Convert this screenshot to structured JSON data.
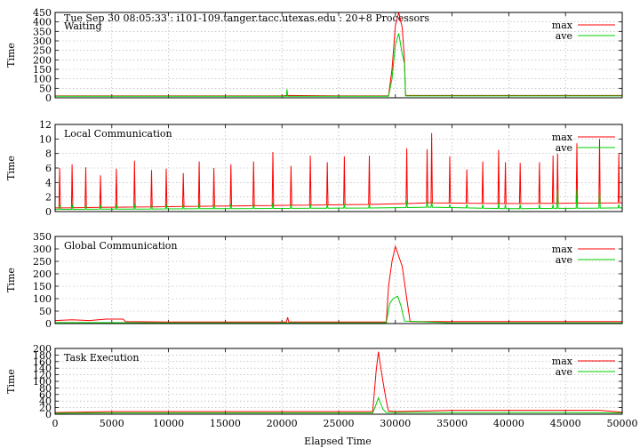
{
  "figure": {
    "header": "Tue Sep 30 08:05:33 : i101-109.tanger.tacc.utexas.edu : 20+8 Processors",
    "x_label": "Elapsed Time",
    "y_label": "Time",
    "x_ticks": [
      "0",
      "5000",
      "10000",
      "15000",
      "20000",
      "25000",
      "30000",
      "35000",
      "40000",
      "45000",
      "50000"
    ],
    "legend": [
      {
        "name": "max",
        "color": "#ff0000"
      },
      {
        "name": "ave",
        "color": "#00cc00"
      }
    ]
  },
  "chart_data": [
    {
      "type": "line",
      "title": "Waiting",
      "xlabel": "",
      "ylabel": "Time",
      "xlim": [
        0,
        50000
      ],
      "ylim": [
        0,
        450
      ],
      "yticks": [
        "0",
        "50",
        "100",
        "150",
        "200",
        "250",
        "300",
        "350",
        "400",
        "450"
      ],
      "grid": true,
      "legend_position": "top-right",
      "series": [
        {
          "name": "max",
          "color": "#ff0000",
          "points": [
            [
              0,
              10
            ],
            [
              5000,
              10
            ],
            [
              10000,
              10
            ],
            [
              15000,
              10
            ],
            [
              20000,
              10
            ],
            [
              20500,
              12
            ],
            [
              25000,
              10
            ],
            [
              29400,
              10
            ],
            [
              29700,
              150
            ],
            [
              30000,
              380
            ],
            [
              30300,
              450
            ],
            [
              30600,
              370
            ],
            [
              30800,
              200
            ],
            [
              30900,
              12
            ],
            [
              35000,
              12
            ],
            [
              40000,
              12
            ],
            [
              45000,
              12
            ],
            [
              50000,
              12
            ]
          ]
        },
        {
          "name": "ave",
          "color": "#00cc00",
          "points": [
            [
              0,
              8
            ],
            [
              5000,
              8
            ],
            [
              10000,
              8
            ],
            [
              15000,
              8
            ],
            [
              20400,
              8
            ],
            [
              20450,
              45
            ],
            [
              20500,
              8
            ],
            [
              25000,
              8
            ],
            [
              29400,
              8
            ],
            [
              29700,
              100
            ],
            [
              30000,
              280
            ],
            [
              30300,
              340
            ],
            [
              30600,
              230
            ],
            [
              30800,
              180
            ],
            [
              30900,
              10
            ],
            [
              35000,
              10
            ],
            [
              40000,
              10
            ],
            [
              45000,
              10
            ],
            [
              50000,
              10
            ]
          ]
        }
      ]
    },
    {
      "type": "line",
      "title": "Local Communication",
      "xlabel": "",
      "ylabel": "Time",
      "xlim": [
        0,
        50000
      ],
      "ylim": [
        0,
        12
      ],
      "yticks": [
        "0",
        "2",
        "4",
        "6",
        "8",
        "10",
        "12"
      ],
      "grid": true,
      "legend_position": "top-right",
      "baseline": {
        "max": [
          [
            0,
            0.5
          ],
          [
            17000,
            0.8
          ],
          [
            29000,
            1.0
          ],
          [
            33000,
            1.2
          ],
          [
            40000,
            1.1
          ],
          [
            50000,
            1.2
          ]
        ],
        "ave": [
          [
            0,
            0.3
          ],
          [
            29000,
            0.5
          ],
          [
            33000,
            0.6
          ],
          [
            40000,
            0.4
          ],
          [
            50000,
            0.5
          ]
        ]
      },
      "spikes": [
        {
          "x": 400,
          "max": 6.0,
          "ave": 1.0
        },
        {
          "x": 1500,
          "max": 6.5,
          "ave": 1.0
        },
        {
          "x": 2700,
          "max": 6.1,
          "ave": 1.0
        },
        {
          "x": 4000,
          "max": 5.0,
          "ave": 1.0
        },
        {
          "x": 5400,
          "max": 5.9,
          "ave": 1.0
        },
        {
          "x": 7000,
          "max": 7.0,
          "ave": 1.0
        },
        {
          "x": 8500,
          "max": 5.7,
          "ave": 1.0
        },
        {
          "x": 9800,
          "max": 5.9,
          "ave": 1.0
        },
        {
          "x": 11300,
          "max": 5.3,
          "ave": 1.0
        },
        {
          "x": 12700,
          "max": 6.9,
          "ave": 1.2
        },
        {
          "x": 14000,
          "max": 6.0,
          "ave": 1.0
        },
        {
          "x": 15500,
          "max": 6.5,
          "ave": 1.0
        },
        {
          "x": 17500,
          "max": 6.9,
          "ave": 1.0
        },
        {
          "x": 19200,
          "max": 8.2,
          "ave": 1.2
        },
        {
          "x": 20800,
          "max": 6.3,
          "ave": 1.0
        },
        {
          "x": 22500,
          "max": 7.7,
          "ave": 1.0
        },
        {
          "x": 24000,
          "max": 6.8,
          "ave": 1.0
        },
        {
          "x": 25500,
          "max": 7.6,
          "ave": 1.0
        },
        {
          "x": 27700,
          "max": 7.7,
          "ave": 1.0
        },
        {
          "x": 31000,
          "max": 8.7,
          "ave": 1.5
        },
        {
          "x": 32800,
          "max": 8.6,
          "ave": 1.5
        },
        {
          "x": 33200,
          "max": 10.8,
          "ave": 1.5
        },
        {
          "x": 34800,
          "max": 7.6,
          "ave": 1.0
        },
        {
          "x": 36300,
          "max": 5.8,
          "ave": 1.0
        },
        {
          "x": 37700,
          "max": 6.9,
          "ave": 1.0
        },
        {
          "x": 39100,
          "max": 8.5,
          "ave": 1.2
        },
        {
          "x": 39700,
          "max": 6.8,
          "ave": 1.0
        },
        {
          "x": 41000,
          "max": 6.7,
          "ave": 1.0
        },
        {
          "x": 42700,
          "max": 6.8,
          "ave": 1.0
        },
        {
          "x": 43900,
          "max": 7.7,
          "ave": 1.0
        },
        {
          "x": 44300,
          "max": 8.0,
          "ave": 3.0
        },
        {
          "x": 46000,
          "max": 9.4,
          "ave": 3.0
        },
        {
          "x": 48000,
          "max": 10.0,
          "ave": 3.0
        },
        {
          "x": 49700,
          "max": 8.0,
          "ave": 1.0
        }
      ]
    },
    {
      "type": "line",
      "title": "Global Communication",
      "xlabel": "",
      "ylabel": "Time",
      "xlim": [
        0,
        50000
      ],
      "ylim": [
        0,
        350
      ],
      "yticks": [
        "0",
        "50",
        "100",
        "150",
        "200",
        "250",
        "300",
        "350"
      ],
      "grid": true,
      "legend_position": "top-right",
      "series": [
        {
          "name": "max",
          "color": "#ff0000",
          "points": [
            [
              0,
              12
            ],
            [
              1500,
              15
            ],
            [
              3000,
              12
            ],
            [
              4500,
              18
            ],
            [
              6000,
              18
            ],
            [
              6200,
              8
            ],
            [
              10000,
              6
            ],
            [
              15000,
              6
            ],
            [
              20400,
              6
            ],
            [
              20500,
              25
            ],
            [
              20600,
              6
            ],
            [
              25000,
              6
            ],
            [
              29200,
              6
            ],
            [
              29400,
              150
            ],
            [
              29700,
              250
            ],
            [
              30000,
              310
            ],
            [
              30300,
              270
            ],
            [
              30600,
              230
            ],
            [
              31000,
              100
            ],
            [
              31300,
              8
            ],
            [
              35000,
              8
            ],
            [
              40000,
              8
            ],
            [
              45000,
              8
            ],
            [
              50000,
              8
            ]
          ]
        },
        {
          "name": "ave",
          "color": "#00cc00",
          "points": [
            [
              0,
              4
            ],
            [
              10000,
              3
            ],
            [
              20000,
              3
            ],
            [
              29200,
              3
            ],
            [
              29500,
              80
            ],
            [
              29800,
              100
            ],
            [
              30200,
              110
            ],
            [
              30500,
              70
            ],
            [
              30800,
              10
            ],
            [
              35000,
              3
            ],
            [
              40000,
              3
            ],
            [
              50000,
              3
            ]
          ]
        }
      ]
    },
    {
      "type": "line",
      "title": "Task Execution",
      "xlabel": "Elapsed Time",
      "ylabel": "Time",
      "xlim": [
        0,
        50000
      ],
      "ylim": [
        0,
        200
      ],
      "yticks": [
        "0",
        "20",
        "40",
        "60",
        "80",
        "100",
        "120",
        "140",
        "160",
        "180",
        "200"
      ],
      "grid": true,
      "legend_position": "top-right",
      "series": [
        {
          "name": "max",
          "color": "#ff0000",
          "points": [
            [
              0,
              5
            ],
            [
              5000,
              8
            ],
            [
              10000,
              8
            ],
            [
              15000,
              8
            ],
            [
              20000,
              8
            ],
            [
              25000,
              8
            ],
            [
              28000,
              8
            ],
            [
              28300,
              130
            ],
            [
              28500,
              190
            ],
            [
              28900,
              100
            ],
            [
              29200,
              40
            ],
            [
              29400,
              10
            ],
            [
              30000,
              8
            ],
            [
              35000,
              12
            ],
            [
              40000,
              12
            ],
            [
              45000,
              12
            ],
            [
              48000,
              12
            ],
            [
              50000,
              6
            ]
          ]
        },
        {
          "name": "ave",
          "color": "#00cc00",
          "points": [
            [
              0,
              3
            ],
            [
              5000,
              4
            ],
            [
              10000,
              4
            ],
            [
              20000,
              4
            ],
            [
              28000,
              4
            ],
            [
              28300,
              30
            ],
            [
              28500,
              50
            ],
            [
              28900,
              15
            ],
            [
              29200,
              5
            ],
            [
              35000,
              5
            ],
            [
              40000,
              5
            ],
            [
              45000,
              5
            ],
            [
              50000,
              4
            ]
          ]
        }
      ]
    }
  ]
}
